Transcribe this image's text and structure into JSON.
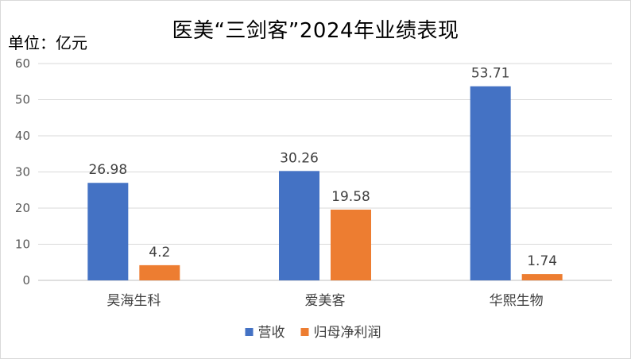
{
  "title": "医美“三剑客”2024年业绩表现",
  "unit": "单位：亿元",
  "chart_data": {
    "type": "bar",
    "categories": [
      "昊海生科",
      "爱美客",
      "华熙生物"
    ],
    "series": [
      {
        "name": "营收",
        "values": [
          26.98,
          30.26,
          53.71
        ],
        "labels": [
          "26.98",
          "30.26",
          "53.71"
        ],
        "color": "#4472C4"
      },
      {
        "name": "归母净利润",
        "values": [
          4.2,
          19.58,
          1.74
        ],
        "labels": [
          "4.2",
          "19.58",
          "1.74"
        ],
        "color": "#ED7D31"
      }
    ],
    "yticks": [
      "0",
      "10",
      "20",
      "30",
      "40",
      "50",
      "60"
    ],
    "ylim": [
      0,
      60
    ],
    "grid": true,
    "legend_position": "bottom"
  }
}
